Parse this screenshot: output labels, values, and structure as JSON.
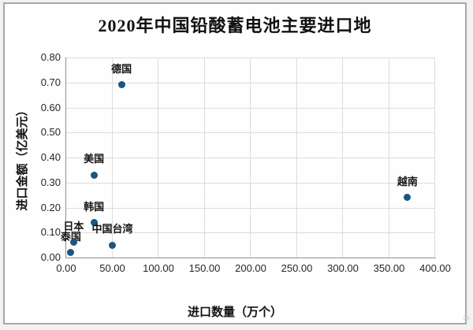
{
  "chart_data": {
    "type": "scatter",
    "title": "2020年中国铅酸蓄电池主要进口地",
    "xlabel": "进口数量（万个）",
    "ylabel": "进口金额（亿美元）",
    "xlim": [
      0,
      400
    ],
    "ylim": [
      0,
      0.8
    ],
    "grid": true,
    "legend": false,
    "marker_color": "#1b567e",
    "x_ticks": [
      {
        "value": 0,
        "label": "0.00"
      },
      {
        "value": 50,
        "label": "50.00"
      },
      {
        "value": 100,
        "label": "100.00"
      },
      {
        "value": 150,
        "label": "150.00"
      },
      {
        "value": 200,
        "label": "200.00"
      },
      {
        "value": 250,
        "label": "250.00"
      },
      {
        "value": 300,
        "label": "300.00"
      },
      {
        "value": 350,
        "label": "350.00"
      },
      {
        "value": 400,
        "label": "400.00"
      }
    ],
    "y_ticks": [
      {
        "value": 0.0,
        "label": "0.00"
      },
      {
        "value": 0.1,
        "label": "0.10"
      },
      {
        "value": 0.2,
        "label": "0.20"
      },
      {
        "value": 0.3,
        "label": "0.30"
      },
      {
        "value": 0.4,
        "label": "0.40"
      },
      {
        "value": 0.5,
        "label": "0.50"
      },
      {
        "value": 0.6,
        "label": "0.60"
      },
      {
        "value": 0.7,
        "label": "0.70"
      },
      {
        "value": 0.8,
        "label": "0.80"
      }
    ],
    "points": [
      {
        "label": "泰国",
        "x": 5,
        "y": 0.02
      },
      {
        "label": "日本",
        "x": 8,
        "y": 0.06
      },
      {
        "label": "韩国",
        "x": 30,
        "y": 0.14
      },
      {
        "label": "中国台湾",
        "x": 50,
        "y": 0.05
      },
      {
        "label": "美国",
        "x": 30,
        "y": 0.33
      },
      {
        "label": "德国",
        "x": 60,
        "y": 0.69
      },
      {
        "label": "越南",
        "x": 370,
        "y": 0.24
      }
    ]
  },
  "watermark_glyph": "✳"
}
